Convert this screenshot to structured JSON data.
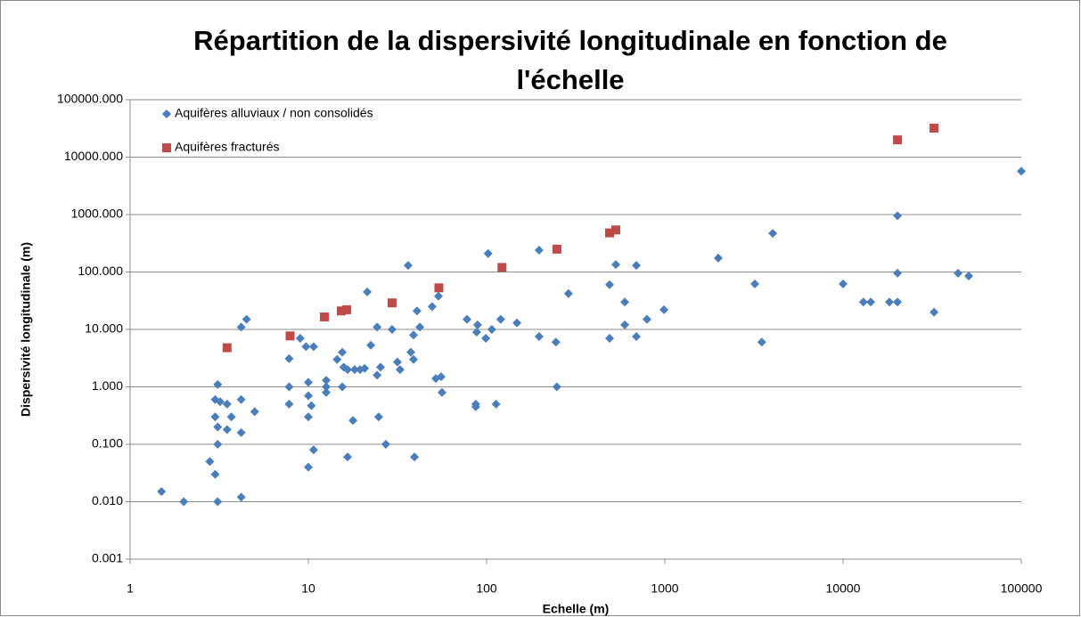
{
  "chart_data": {
    "type": "scatter",
    "title": "Répartition de la dispersivité longitudinale en fonction de l'échelle",
    "xlabel": "Echelle (m)",
    "ylabel": "Dispersivité longitudinale (m)",
    "xscale": "log",
    "yscale": "log",
    "grid": true,
    "legend": "upper left",
    "xlim": [
      1,
      100000
    ],
    "xticks": [
      1,
      10,
      100,
      1000,
      10000,
      100000
    ],
    "ylim": [
      0.001,
      100000
    ],
    "yticks": [
      {
        "value": 0.001,
        "label": "0.001"
      },
      {
        "value": 0.01,
        "label": "0.010"
      },
      {
        "value": 0.1,
        "label": "0.100"
      },
      {
        "value": 1,
        "label": "1.000"
      },
      {
        "value": 10,
        "label": "10.000"
      },
      {
        "value": 100,
        "label": "100.000"
      },
      {
        "value": 1000,
        "label": "1000.000"
      },
      {
        "value": 10000,
        "label": "10000.000"
      },
      {
        "value": 100000,
        "label": "100000.000"
      }
    ],
    "series": [
      {
        "name": "Aquifères alluviaux / non consolidés",
        "color": "#4a7ebb",
        "marker": "diamond",
        "x": [
          1.5,
          2,
          3,
          3,
          3,
          2.8,
          3.1,
          3.2,
          3.5,
          3.1,
          3.1,
          3.5,
          3.1,
          3.7,
          4.2,
          4.2,
          4.2,
          4.2,
          4.5,
          5,
          7.8,
          7.8,
          7.8,
          9,
          9.7,
          10.7,
          10,
          10,
          10,
          10,
          10.4,
          10.7,
          12.6,
          12.6,
          12.6,
          14.5,
          15.5,
          15.5,
          15.8,
          16.6,
          16.6,
          18.2,
          19.5,
          20.7,
          17.8,
          21.4,
          22.4,
          24.3,
          24.3,
          25.4,
          24.8,
          27.2,
          29.5,
          31.6,
          32.7,
          36.3,
          37.6,
          38.9,
          38.9,
          40.7,
          39.4,
          42.2,
          49.5,
          51.9,
          53.7,
          55.6,
          56.2,
          77.6,
          88,
          89,
          87,
          87,
          99,
          102,
          107,
          113,
          120,
          148,
          197,
          197,
          245,
          248,
          288,
          490,
          490,
          531,
          596,
          596,
          692,
          692,
          794,
          989,
          1995,
          3200,
          3500,
          4030,
          10000,
          13000,
          14300,
          18200,
          20200,
          20200,
          20200,
          32400,
          44200,
          50700,
          100000
        ],
        "values": [
          0.015,
          0.01,
          0.6,
          0.3,
          0.03,
          0.05,
          1.1,
          0.55,
          0.5,
          0.2,
          0.1,
          0.18,
          0.01,
          0.3,
          0.6,
          0.16,
          0.012,
          11,
          15,
          0.37,
          0.5,
          3.1,
          1.0,
          7,
          5,
          5,
          1.2,
          0.7,
          0.3,
          0.04,
          0.47,
          0.08,
          1.3,
          0.8,
          1.0,
          3,
          4,
          1.0,
          2.2,
          2,
          0.06,
          2,
          2,
          2.1,
          0.26,
          45,
          5.3,
          1.6,
          11,
          2.2,
          0.3,
          0.1,
          10,
          2.7,
          2,
          130,
          4,
          8,
          3,
          21,
          0.06,
          11,
          25,
          1.4,
          38,
          1.5,
          0.8,
          15,
          9,
          12,
          0.5,
          0.45,
          7,
          210,
          10,
          0.5,
          15,
          13,
          240,
          7.5,
          6,
          1.0,
          42,
          60,
          7,
          135,
          30,
          12,
          130,
          7.5,
          15,
          22,
          175,
          62,
          6,
          470,
          62,
          30,
          30,
          30,
          30,
          950,
          95,
          20,
          95,
          85,
          5700
        ]
      },
      {
        "name": "Aquifères fracturés",
        "color": "#be4b48",
        "marker": "square",
        "x": [
          3.5,
          7.9,
          12.3,
          15.3,
          16.4,
          29.5,
          54,
          122,
          248,
          490,
          531,
          20200,
          32400
        ],
        "values": [
          4.8,
          7.7,
          16.5,
          21,
          22,
          29,
          53,
          120,
          250,
          480,
          540,
          20000,
          32000
        ]
      }
    ]
  }
}
